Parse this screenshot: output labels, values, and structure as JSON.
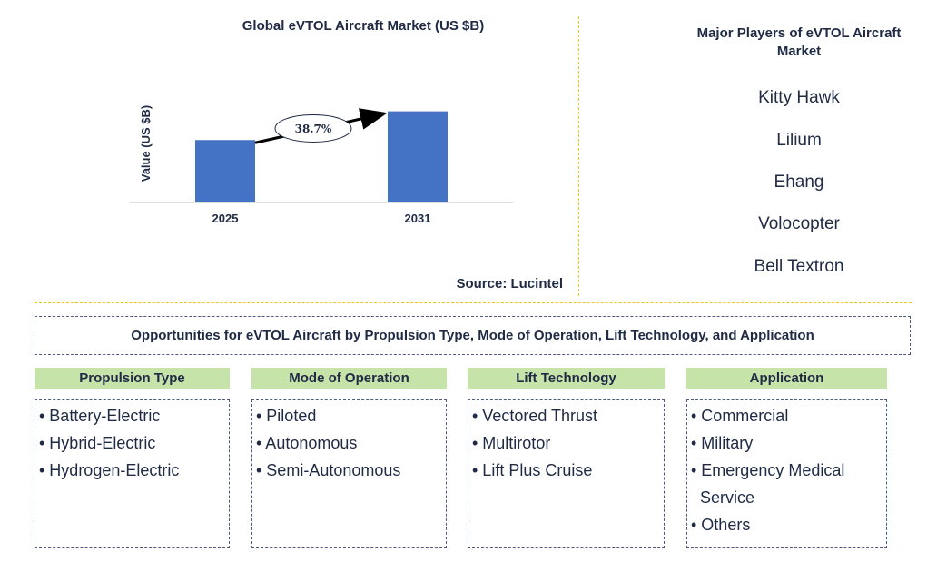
{
  "chart_data": {
    "type": "bar",
    "title": "Global eVTOL Aircraft Market (US $B)",
    "ylabel": "Value (US $B)",
    "categories": [
      "2025",
      "2031"
    ],
    "values": [
      1.0,
      1.46
    ],
    "ylim": [
      0,
      1.6
    ],
    "annotation": "38.7%",
    "bar_color": "#4472c4"
  },
  "source": "Source: Lucintel",
  "players": {
    "title": "Major Players of eVTOL Aircraft Market",
    "items": [
      "Kitty Hawk",
      "Lilium",
      "Ehang",
      "Volocopter",
      "Bell Textron"
    ]
  },
  "opportunities": {
    "title": "Opportunities for eVTOL Aircraft by Propulsion Type, Mode of Operation, Lift Technology, and  Application",
    "categories": [
      {
        "header": "Propulsion Type",
        "items": [
          "• Battery-Electric",
          "• Hybrid-Electric",
          "• Hydrogen-Electric"
        ]
      },
      {
        "header": "Mode of Operation",
        "items": [
          "• Piloted",
          "• Autonomous",
          "• Semi-Autonomous"
        ]
      },
      {
        "header": "Lift Technology",
        "items": [
          "• Vectored Thrust",
          "• Multirotor",
          "• Lift Plus Cruise"
        ]
      },
      {
        "header": "Application",
        "items": [
          "• Commercial",
          "• Military",
          "• Emergency Medical",
          "Service",
          "• Others"
        ]
      }
    ]
  }
}
